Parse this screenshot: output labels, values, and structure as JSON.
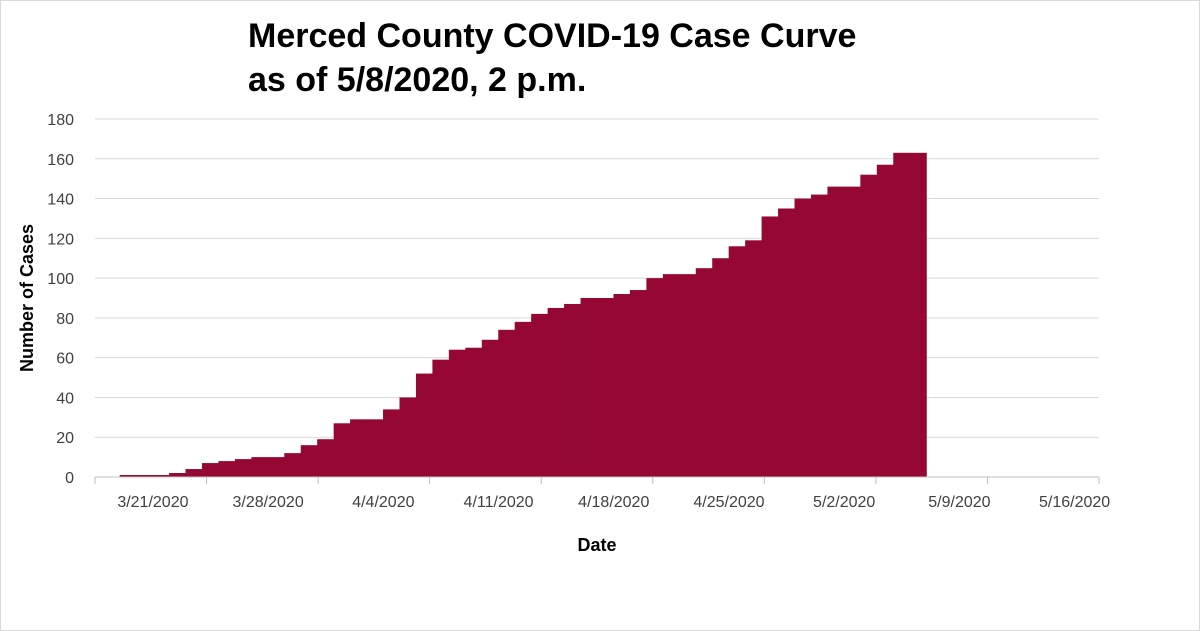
{
  "chart_data": {
    "type": "area",
    "title": "Merced County COVID-19 Case Curve",
    "subtitle": "as of 5/8/2020, 2 p.m.",
    "xlabel": "Date",
    "ylabel": "Number of Cases",
    "ylim": [
      0,
      180
    ],
    "yticks": [
      0,
      20,
      40,
      60,
      80,
      100,
      120,
      140,
      160,
      180
    ],
    "xticks": [
      "3/21/2020",
      "3/28/2020",
      "4/4/2020",
      "4/11/2020",
      "4/18/2020",
      "4/25/2020",
      "5/2/2020",
      "5/9/2020",
      "5/16/2020"
    ],
    "xlim": [
      "3/19/2020",
      "5/19/2020"
    ],
    "grid": true,
    "color": "#950834",
    "series": [
      {
        "dates": [
          "3/21/2020",
          "3/22/2020",
          "3/23/2020",
          "3/24/2020",
          "3/25/2020",
          "3/26/2020",
          "3/27/2020",
          "3/28/2020",
          "3/29/2020",
          "3/30/2020",
          "3/31/2020",
          "4/1/2020",
          "4/2/2020",
          "4/3/2020",
          "4/4/2020",
          "4/5/2020",
          "4/6/2020",
          "4/7/2020",
          "4/8/2020",
          "4/9/2020",
          "4/10/2020",
          "4/11/2020",
          "4/12/2020",
          "4/13/2020",
          "4/14/2020",
          "4/15/2020",
          "4/16/2020",
          "4/17/2020",
          "4/18/2020",
          "4/19/2020",
          "4/20/2020",
          "4/21/2020",
          "4/22/2020",
          "4/23/2020",
          "4/24/2020",
          "4/25/2020",
          "4/26/2020",
          "4/27/2020",
          "4/28/2020",
          "4/29/2020",
          "4/30/2020",
          "5/1/2020",
          "5/2/2020",
          "5/3/2020",
          "5/4/2020",
          "5/5/2020",
          "5/6/2020",
          "5/7/2020",
          "5/8/2020"
        ],
        "values": [
          1,
          1,
          1,
          2,
          4,
          7,
          8,
          9,
          10,
          10,
          12,
          16,
          19,
          27,
          29,
          29,
          34,
          40,
          52,
          59,
          64,
          65,
          69,
          74,
          78,
          82,
          85,
          87,
          90,
          90,
          92,
          94,
          100,
          102,
          102,
          105,
          110,
          116,
          119,
          131,
          135,
          140,
          142,
          146,
          146,
          152,
          157,
          163,
          163
        ]
      }
    ]
  }
}
